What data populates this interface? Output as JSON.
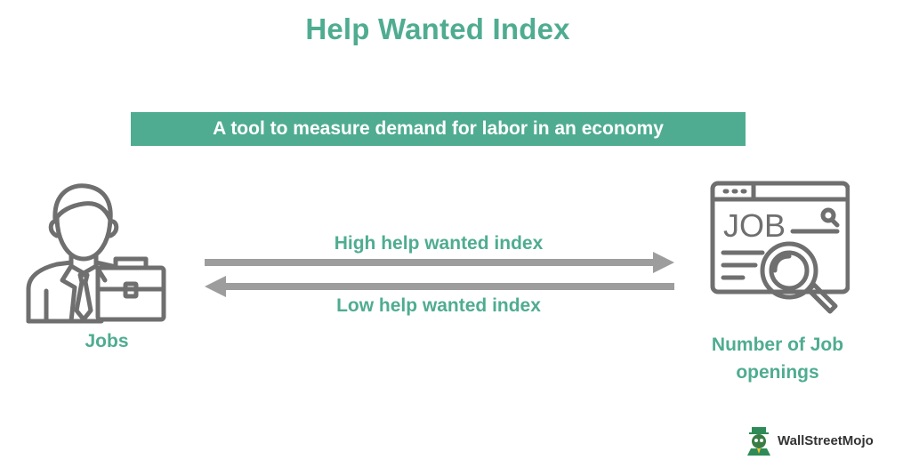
{
  "title": "Help Wanted Index",
  "subtitle": "A tool to measure demand for labor in an economy",
  "arrows": {
    "high_label": "High help wanted index",
    "low_label": "Low help wanted index"
  },
  "left_node": {
    "label": "Jobs",
    "icon": "businessman-briefcase-icon"
  },
  "right_node": {
    "label": "Number of Job openings",
    "icon": "job-search-window-icon",
    "icon_text": "JOB"
  },
  "brand": {
    "text": "WallStreetMojo",
    "logo": "wallstreetmojo-logo"
  },
  "colors": {
    "accent": "#4fac91",
    "icon_gray": "#6f6f6f",
    "arrow_gray": "#9d9d9d",
    "banner_text": "#ffffff"
  }
}
